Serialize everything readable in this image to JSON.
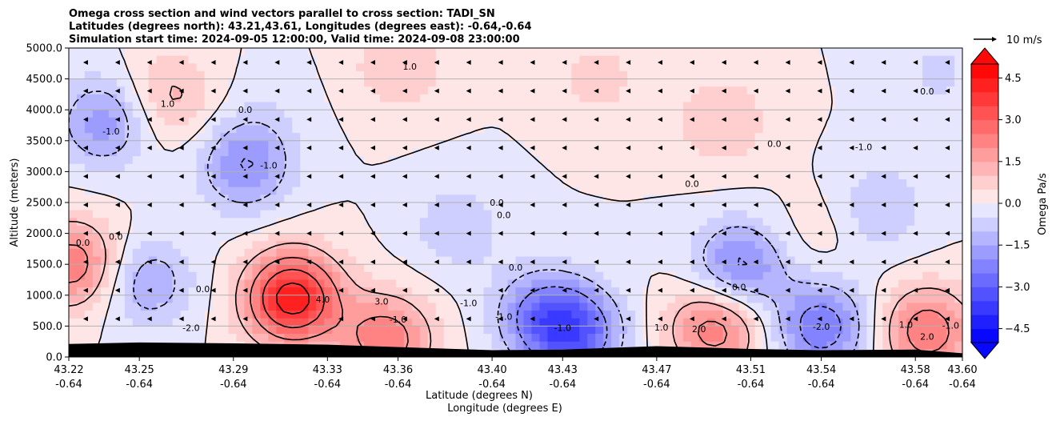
{
  "chart_data": {
    "type": "heatmap",
    "title_lines": [
      "Omega cross section and wind vectors parallel to cross section: TADI_SN",
      "Latitudes (degrees north): 43.21,43.61, Longitudes (degrees east): -0.64,-0.64",
      "Simulation start time: 2024-09-05 12:00:00, Valid time: 2024-09-08 23:00:00"
    ],
    "ylabel": "Altitude (meters)",
    "xlabel_lines": [
      "Latitude (degrees N)",
      "Longitude (degrees E)"
    ],
    "ylim": [
      0,
      5000
    ],
    "xlim": [
      43.22,
      43.6
    ],
    "grid": "horizontal",
    "y_ticks": [
      "0.0",
      "500.0",
      "1000.0",
      "1500.0",
      "2000.0",
      "2500.0",
      "3000.0",
      "3500.0",
      "4000.0",
      "4500.0",
      "5000.0"
    ],
    "x_ticks": [
      {
        "lat": "43.22",
        "lon": "-0.64"
      },
      {
        "lat": "43.25",
        "lon": "-0.64"
      },
      {
        "lat": "43.29",
        "lon": "-0.64"
      },
      {
        "lat": "43.33",
        "lon": "-0.64"
      },
      {
        "lat": "43.36",
        "lon": "-0.64"
      },
      {
        "lat": "43.40",
        "lon": "-0.64"
      },
      {
        "lat": "43.43",
        "lon": "-0.64"
      },
      {
        "lat": "43.47",
        "lon": "-0.64"
      },
      {
        "lat": "43.51",
        "lon": "-0.64"
      },
      {
        "lat": "43.54",
        "lon": "-0.64"
      },
      {
        "lat": "43.58",
        "lon": "-0.64"
      },
      {
        "lat": "43.60",
        "lon": "-0.64"
      }
    ],
    "colorbar": {
      "label": "Omega Pa/s",
      "range": [
        -5,
        5
      ],
      "step": 0.5,
      "ticks": [
        "4.5",
        "3.0",
        "1.5",
        "0.0",
        "−1.5",
        "−3.0",
        "−4.5"
      ],
      "colormap": "bwr",
      "extend": "both"
    },
    "quiver_key": {
      "label": "10 m/s"
    },
    "contour_labels": [
      "1.0",
      "1.0",
      "0.0",
      "-1.0",
      "-1.0",
      "0.0",
      "0.0",
      "0.0",
      "0.0",
      "0.0",
      "0.0",
      "0.0",
      "0.0",
      "0.0",
      "-1.0",
      "-1.0",
      "-2.0",
      "4.0",
      "3.0",
      "-1.0",
      "-1.0",
      "0.0",
      "1.0",
      "2.0",
      "-2.0",
      "1.0",
      "2.0",
      "-1.0",
      "0.0",
      "-1.0"
    ],
    "omega_centers": [
      {
        "lat": 43.315,
        "alt": 950,
        "value": 4.5
      },
      {
        "lat": 43.355,
        "alt": 280,
        "value": 2.5
      },
      {
        "lat": 43.222,
        "alt": 1500,
        "value": 2.5
      },
      {
        "lat": 43.263,
        "alt": 4200,
        "value": 1.2
      },
      {
        "lat": 43.36,
        "alt": 4700,
        "value": 1.0
      },
      {
        "lat": 43.445,
        "alt": 4500,
        "value": 0.7
      },
      {
        "lat": 43.498,
        "alt": 3800,
        "value": 1.0
      },
      {
        "lat": 43.495,
        "alt": 480,
        "value": 2.5
      },
      {
        "lat": 43.585,
        "alt": 420,
        "value": 2.5
      },
      {
        "lat": 43.54,
        "alt": 2000,
        "value": 0.4
      },
      {
        "lat": 43.235,
        "alt": 3800,
        "value": -1.8
      },
      {
        "lat": 43.295,
        "alt": 3100,
        "value": -2.0
      },
      {
        "lat": 43.253,
        "alt": 1200,
        "value": -1.5
      },
      {
        "lat": 43.385,
        "alt": 2100,
        "value": -0.9
      },
      {
        "lat": 43.42,
        "alt": 700,
        "value": -1.8
      },
      {
        "lat": 43.435,
        "alt": 380,
        "value": -3.0
      },
      {
        "lat": 43.505,
        "alt": 1450,
        "value": -2.3
      },
      {
        "lat": 43.54,
        "alt": 480,
        "value": -2.5
      },
      {
        "lat": 43.565,
        "alt": 2400,
        "value": -1.0
      },
      {
        "lat": 43.59,
        "alt": 4600,
        "value": -0.6
      },
      {
        "lat": 43.305,
        "alt": 4000,
        "value": -0.3
      }
    ],
    "terrain": [
      {
        "lat": 43.22,
        "alt": 210
      },
      {
        "lat": 43.25,
        "alt": 235
      },
      {
        "lat": 43.29,
        "alt": 220
      },
      {
        "lat": 43.33,
        "alt": 200
      },
      {
        "lat": 43.36,
        "alt": 160
      },
      {
        "lat": 43.4,
        "alt": 110
      },
      {
        "lat": 43.43,
        "alt": 120
      },
      {
        "lat": 43.47,
        "alt": 175
      },
      {
        "lat": 43.51,
        "alt": 130
      },
      {
        "lat": 43.54,
        "alt": 110
      },
      {
        "lat": 43.58,
        "alt": 120
      },
      {
        "lat": 43.6,
        "alt": 60
      }
    ]
  }
}
